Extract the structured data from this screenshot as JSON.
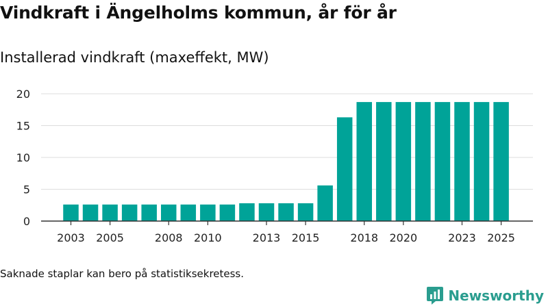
{
  "colors": {
    "bar": "#00a398",
    "grid": "#dddddd",
    "axis": "#333333",
    "brand": "#2a9d8f"
  },
  "chart_data": {
    "type": "bar",
    "title": "Vindkraft i Ängelholms kommun, år för år",
    "subtitle": "Installerad vindkraft (maxeffekt, MW)",
    "xlabel": "",
    "ylabel": "",
    "x": [
      2003,
      2004,
      2005,
      2006,
      2007,
      2008,
      2009,
      2010,
      2011,
      2012,
      2013,
      2014,
      2015,
      2016,
      2017,
      2018,
      2019,
      2020,
      2021,
      2022,
      2023,
      2024,
      2025
    ],
    "values": [
      2.6,
      2.6,
      2.6,
      2.6,
      2.6,
      2.6,
      2.6,
      2.6,
      2.6,
      2.8,
      2.8,
      2.8,
      2.8,
      5.6,
      16.3,
      18.7,
      18.7,
      18.7,
      18.7,
      18.7,
      18.7,
      18.7,
      18.7
    ],
    "x_tick_labels": [
      "2003",
      "2005",
      "2008",
      "2010",
      "2013",
      "2015",
      "2018",
      "2020",
      "2023",
      "2025"
    ],
    "y_ticks": [
      0,
      5,
      10,
      15,
      20
    ],
    "ylim": [
      0,
      20
    ],
    "grid": true
  },
  "footnote": "Saknade staplar kan bero på statistiksekretess.",
  "brand": {
    "name": "Newsworthy",
    "icon": "newsworthy-logo-icon"
  }
}
